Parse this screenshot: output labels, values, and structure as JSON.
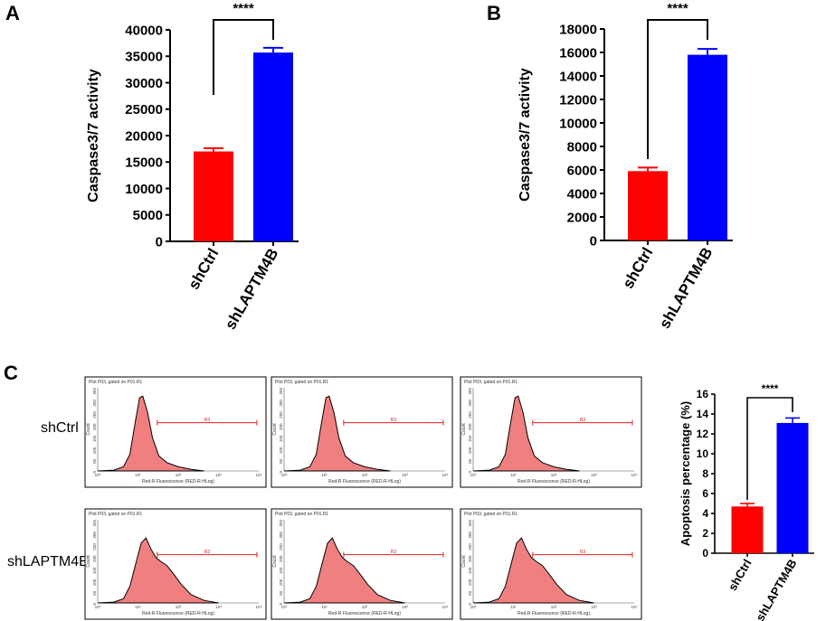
{
  "panel_labels": {
    "a": "A",
    "b": "B",
    "c": "C"
  },
  "colors": {
    "red": "#ff0000",
    "blue": "#0000ff",
    "hist_fill": "#f08080",
    "gate": "#e02020"
  },
  "chart_data": [
    {
      "id": "A",
      "type": "bar",
      "title": "",
      "xlabel": "",
      "ylabel": "Caspase3/7 activity",
      "categories": [
        "shCtrl",
        "shLAPTM4B"
      ],
      "values": [
        17000,
        35700
      ],
      "errors": [
        600,
        900
      ],
      "ylim": [
        0,
        40000
      ],
      "yticks": [
        0,
        5000,
        10000,
        15000,
        20000,
        25000,
        30000,
        35000,
        40000
      ],
      "significance": "****"
    },
    {
      "id": "B",
      "type": "bar",
      "title": "",
      "xlabel": "",
      "ylabel": "Caspase3/7 activity",
      "categories": [
        "shCtrl",
        "shLAPTM4B"
      ],
      "values": [
        5900,
        15800
      ],
      "errors": [
        300,
        500
      ],
      "ylim": [
        0,
        18000
      ],
      "yticks": [
        0,
        2000,
        4000,
        6000,
        8000,
        10000,
        12000,
        14000,
        16000,
        18000
      ],
      "significance": "****"
    },
    {
      "id": "C-bar",
      "type": "bar",
      "title": "",
      "xlabel": "",
      "ylabel": "Apoptosis percentage (%)",
      "categories": [
        "shCtrl",
        "shLAPTM4B"
      ],
      "values": [
        4.7,
        13.1
      ],
      "errors": [
        0.3,
        0.5
      ],
      "ylim": [
        0,
        16
      ],
      "yticks": [
        0,
        2,
        4,
        6,
        8,
        10,
        12,
        14,
        16
      ],
      "significance": "****"
    }
  ],
  "flow": {
    "row_labels": [
      "shCtrl",
      "shLAPTM4B"
    ],
    "plot_title": "Plot P03, gated on P01.R1",
    "x_label": "Red-R Fluorescence (RED-R-HLog)",
    "y_label": "Count",
    "gate_label": "R3",
    "x_ticks": [
      "10⁰",
      "10¹",
      "10²",
      "10³",
      "10⁴"
    ],
    "y_ticks": [
      "0",
      "50",
      "100",
      "150",
      "200",
      "250",
      "300",
      "350"
    ]
  }
}
